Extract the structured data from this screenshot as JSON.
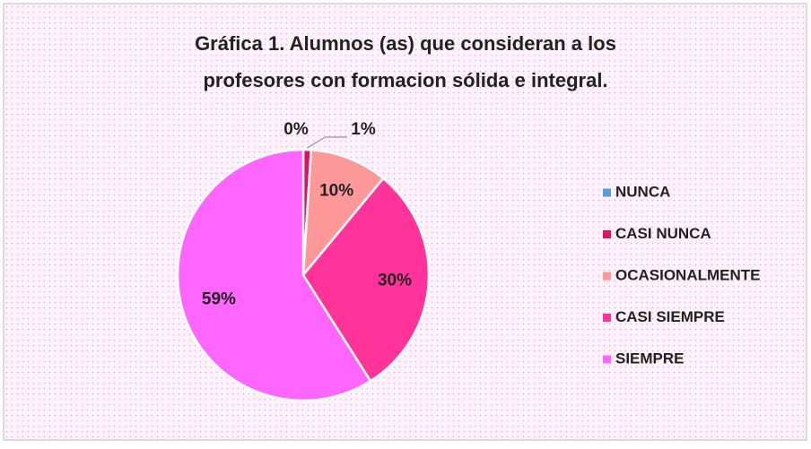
{
  "chart_data": {
    "type": "pie",
    "title": [
      "Gráfica 1. Alumnos (as) que consideran a los",
      "profesores con formacion sólida e integral."
    ],
    "categories": [
      "NUNCA",
      "CASI NUNCA",
      "OCASIONALMENTE",
      "CASI SIEMPRE",
      "SIEMPRE"
    ],
    "values": [
      0,
      1,
      10,
      30,
      59
    ],
    "value_labels": [
      "0%",
      "1%",
      "10%",
      "30%",
      "59%"
    ],
    "colors": [
      "#5b9bd5",
      "#e0115f",
      "#ff9999",
      "#ff3399",
      "#ff66ff"
    ],
    "legend": "right"
  }
}
